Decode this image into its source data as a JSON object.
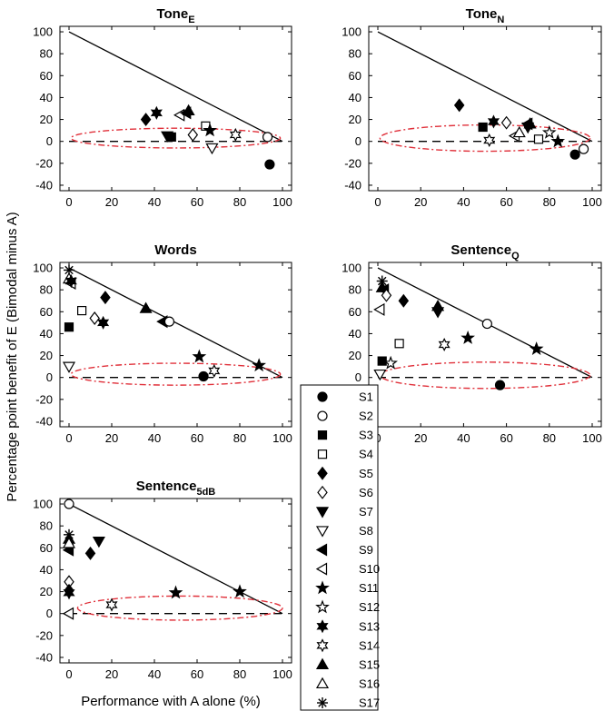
{
  "figure": {
    "ylabel": "Percentage point benefit of E (Bimodal minus A)",
    "xlabel": "Performance with A alone (%)"
  },
  "legend": {
    "entries": [
      {
        "label": "S1",
        "marker": "circle-filled"
      },
      {
        "label": "S2",
        "marker": "circle-open"
      },
      {
        "label": "S3",
        "marker": "square-filled"
      },
      {
        "label": "S4",
        "marker": "square-open"
      },
      {
        "label": "S5",
        "marker": "diamond-filled"
      },
      {
        "label": "S6",
        "marker": "diamond-open"
      },
      {
        "label": "S7",
        "marker": "tri-down-filled"
      },
      {
        "label": "S8",
        "marker": "tri-down-open"
      },
      {
        "label": "S9",
        "marker": "tri-left-filled"
      },
      {
        "label": "S10",
        "marker": "tri-left-open"
      },
      {
        "label": "S11",
        "marker": "star5-filled"
      },
      {
        "label": "S12",
        "marker": "star5-open"
      },
      {
        "label": "S13",
        "marker": "star6-filled"
      },
      {
        "label": "S14",
        "marker": "star6-open"
      },
      {
        "label": "S15",
        "marker": "tri-up-filled"
      },
      {
        "label": "S16",
        "marker": "tri-up-open"
      },
      {
        "label": "S17",
        "marker": "asterisk"
      }
    ]
  },
  "colors": {
    "ellipse": "#e0303a",
    "ink": "#000000"
  },
  "chart_data": [
    {
      "type": "scatter",
      "title": "Tone",
      "title_sub": "E",
      "xlim": [
        0,
        100
      ],
      "ylim": [
        -45,
        105
      ],
      "xticks": [
        "0",
        "20",
        "40",
        "60",
        "80",
        "100"
      ],
      "yticks": [
        "-40",
        "-20",
        "0",
        "20",
        "40",
        "60",
        "80",
        "100"
      ],
      "x_tick_values": [
        0,
        20,
        40,
        60,
        80,
        100
      ],
      "y_tick_values": [
        -40,
        -20,
        0,
        20,
        40,
        60,
        80,
        100
      ],
      "reference_line": [
        [
          0,
          100
        ],
        [
          100,
          0
        ]
      ],
      "zero_line": 0,
      "noise_ellipse": {
        "cx": 50,
        "cy": 3,
        "rx": 49,
        "ry": 9
      },
      "points": [
        {
          "s": "S5",
          "x": 36,
          "y": 20
        },
        {
          "s": "S13",
          "x": 41,
          "y": 26
        },
        {
          "s": "S3",
          "x": 48,
          "y": 4
        },
        {
          "s": "S7",
          "x": 46,
          "y": 5
        },
        {
          "s": "S10",
          "x": 52,
          "y": 24
        },
        {
          "s": "S9",
          "x": 55,
          "y": 26
        },
        {
          "s": "S15",
          "x": 56,
          "y": 28
        },
        {
          "s": "S6",
          "x": 58,
          "y": 6
        },
        {
          "s": "S4",
          "x": 64,
          "y": 14
        },
        {
          "s": "S8",
          "x": 67,
          "y": -6
        },
        {
          "s": "S11",
          "x": 66,
          "y": 10
        },
        {
          "s": "S14",
          "x": 78,
          "y": 6
        },
        {
          "s": "S2",
          "x": 93,
          "y": 4
        },
        {
          "s": "S1",
          "x": 94,
          "y": -21
        }
      ]
    },
    {
      "type": "scatter",
      "title": "Tone",
      "title_sub": "N",
      "xlim": [
        0,
        100
      ],
      "ylim": [
        -45,
        105
      ],
      "xticks": [
        "0",
        "20",
        "40",
        "60",
        "80",
        "100"
      ],
      "yticks": [
        "-40",
        "-20",
        "0",
        "20",
        "40",
        "60",
        "80",
        "100"
      ],
      "x_tick_values": [
        0,
        20,
        40,
        60,
        80,
        100
      ],
      "y_tick_values": [
        -40,
        -20,
        0,
        20,
        40,
        60,
        80,
        100
      ],
      "reference_line": [
        [
          0,
          100
        ],
        [
          100,
          0
        ]
      ],
      "zero_line": 0,
      "noise_ellipse": {
        "cx": 50,
        "cy": 3,
        "rx": 49,
        "ry": 12
      },
      "points": [
        {
          "s": "S5",
          "x": 38,
          "y": 33
        },
        {
          "s": "S3",
          "x": 49,
          "y": 13
        },
        {
          "s": "S13",
          "x": 54,
          "y": 18
        },
        {
          "s": "S14",
          "x": 52,
          "y": 1
        },
        {
          "s": "S6",
          "x": 60,
          "y": 17
        },
        {
          "s": "S10",
          "x": 64,
          "y": 5
        },
        {
          "s": "S16",
          "x": 66,
          "y": 8
        },
        {
          "s": "S9",
          "x": 70,
          "y": 16
        },
        {
          "s": "S15",
          "x": 71,
          "y": 16
        },
        {
          "s": "S7",
          "x": 70,
          "y": 13
        },
        {
          "s": "S4",
          "x": 75,
          "y": 2
        },
        {
          "s": "S12",
          "x": 80,
          "y": 8
        },
        {
          "s": "S11",
          "x": 84,
          "y": 0
        },
        {
          "s": "S1",
          "x": 92,
          "y": -12
        },
        {
          "s": "S2",
          "x": 96,
          "y": -7
        }
      ]
    },
    {
      "type": "scatter",
      "title": "Words",
      "title_sub": "",
      "xlim": [
        0,
        100
      ],
      "ylim": [
        -45,
        105
      ],
      "xticks": [
        "0",
        "20",
        "40",
        "60",
        "80",
        "100"
      ],
      "yticks": [
        "-40",
        "-20",
        "0",
        "20",
        "40",
        "60",
        "80",
        "100"
      ],
      "x_tick_values": [
        0,
        20,
        40,
        60,
        80,
        100
      ],
      "y_tick_values": [
        -40,
        -20,
        0,
        20,
        40,
        60,
        80,
        100
      ],
      "reference_line": [
        [
          0,
          100
        ],
        [
          100,
          0
        ]
      ],
      "zero_line": 0,
      "noise_ellipse": {
        "cx": 50,
        "cy": 3,
        "rx": 49,
        "ry": 10
      },
      "points": [
        {
          "s": "S17",
          "x": 0,
          "y": 98
        },
        {
          "s": "S16",
          "x": 0,
          "y": 90
        },
        {
          "s": "S10",
          "x": 1,
          "y": 86
        },
        {
          "s": "S13",
          "x": 1,
          "y": 88
        },
        {
          "s": "S3",
          "x": 0,
          "y": 46
        },
        {
          "s": "S8",
          "x": 0,
          "y": 10
        },
        {
          "s": "S4",
          "x": 6,
          "y": 61
        },
        {
          "s": "S6",
          "x": 12,
          "y": 54
        },
        {
          "s": "S5",
          "x": 17,
          "y": 73
        },
        {
          "s": "S13",
          "x": 16,
          "y": 50
        },
        {
          "s": "S15",
          "x": 36,
          "y": 63
        },
        {
          "s": "S9",
          "x": 44,
          "y": 51
        },
        {
          "s": "S2",
          "x": 47,
          "y": 51
        },
        {
          "s": "S11",
          "x": 61,
          "y": 19
        },
        {
          "s": "S1",
          "x": 63,
          "y": 1
        },
        {
          "s": "S14",
          "x": 68,
          "y": 6
        },
        {
          "s": "S11",
          "x": 89,
          "y": 11
        }
      ]
    },
    {
      "type": "scatter",
      "title": "Sentence",
      "title_sub": "Q",
      "xlim": [
        0,
        100
      ],
      "ylim": [
        -45,
        105
      ],
      "xticks": [
        "0",
        "20",
        "40",
        "60",
        "80",
        "100"
      ],
      "yticks": [
        "-40",
        "-20",
        "0",
        "20",
        "40",
        "60",
        "80",
        "100"
      ],
      "x_tick_values": [
        0,
        20,
        40,
        60,
        80,
        100
      ],
      "y_tick_values": [
        -40,
        -20,
        0,
        20,
        40,
        60,
        80,
        100
      ],
      "reference_line": [
        [
          0,
          100
        ],
        [
          100,
          0
        ]
      ],
      "zero_line": 0,
      "noise_ellipse": {
        "cx": 50,
        "cy": 2,
        "rx": 49,
        "ry": 12
      },
      "points": [
        {
          "s": "S17",
          "x": 2,
          "y": 88
        },
        {
          "s": "S15",
          "x": 2,
          "y": 82
        },
        {
          "s": "S9",
          "x": 3,
          "y": 80
        },
        {
          "s": "S6",
          "x": 4,
          "y": 75
        },
        {
          "s": "S10",
          "x": 1,
          "y": 62
        },
        {
          "s": "S3",
          "x": 2,
          "y": 15
        },
        {
          "s": "S8",
          "x": 1,
          "y": 3
        },
        {
          "s": "S12",
          "x": 6,
          "y": 13
        },
        {
          "s": "S4",
          "x": 10,
          "y": 31
        },
        {
          "s": "S5",
          "x": 12,
          "y": 70
        },
        {
          "s": "S7",
          "x": 28,
          "y": 60
        },
        {
          "s": "S15",
          "x": 28,
          "y": 65
        },
        {
          "s": "S14",
          "x": 31,
          "y": 30
        },
        {
          "s": "S11",
          "x": 42,
          "y": 36
        },
        {
          "s": "S2",
          "x": 51,
          "y": 49
        },
        {
          "s": "S1",
          "x": 57,
          "y": -7
        },
        {
          "s": "S11",
          "x": 74,
          "y": 26
        }
      ]
    },
    {
      "type": "scatter",
      "title": "Sentence",
      "title_sub": "5dB",
      "xlim": [
        0,
        100
      ],
      "ylim": [
        -45,
        105
      ],
      "xticks": [
        "0",
        "20",
        "40",
        "60",
        "80",
        "100"
      ],
      "yticks": [
        "-40",
        "-20",
        "0",
        "20",
        "40",
        "60",
        "80",
        "100"
      ],
      "x_tick_values": [
        0,
        20,
        40,
        60,
        80,
        100
      ],
      "y_tick_values": [
        -40,
        -20,
        0,
        20,
        40,
        60,
        80,
        100
      ],
      "reference_line": [
        [
          0,
          100
        ],
        [
          100,
          0
        ]
      ],
      "zero_line": 0,
      "noise_ellipse": {
        "cx": 52,
        "cy": 5,
        "rx": 48,
        "ry": 11
      },
      "points": [
        {
          "s": "S2",
          "x": 0,
          "y": 100
        },
        {
          "s": "S17",
          "x": 0,
          "y": 72
        },
        {
          "s": "S15",
          "x": 0,
          "y": 68
        },
        {
          "s": "S9",
          "x": 0,
          "y": 58
        },
        {
          "s": "S16",
          "x": 0,
          "y": 64
        },
        {
          "s": "S6",
          "x": 0,
          "y": 29
        },
        {
          "s": "S5",
          "x": 0,
          "y": 21
        },
        {
          "s": "S13",
          "x": 0,
          "y": 19
        },
        {
          "s": "S10",
          "x": 0,
          "y": 0
        },
        {
          "s": "S5",
          "x": 10,
          "y": 55
        },
        {
          "s": "S7",
          "x": 14,
          "y": 66
        },
        {
          "s": "S14",
          "x": 20,
          "y": 8
        },
        {
          "s": "S11",
          "x": 50,
          "y": 19
        },
        {
          "s": "S11",
          "x": 80,
          "y": 20
        }
      ]
    }
  ]
}
